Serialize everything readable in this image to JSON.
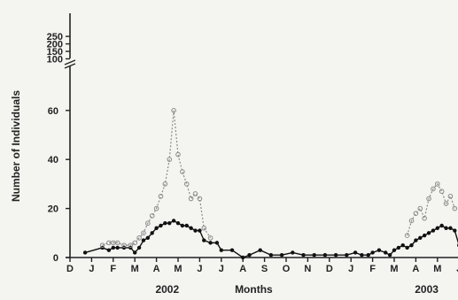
{
  "chart_data": {
    "type": "line",
    "title": "",
    "xlabel": "Months",
    "ylabel": "Number of Individuals",
    "x_ticks": [
      "D",
      "J",
      "F",
      "M",
      "A",
      "M",
      "J",
      "J",
      "A",
      "S",
      "O",
      "N",
      "D",
      "J",
      "F",
      "M",
      "A",
      "M",
      "J"
    ],
    "year_labels": [
      {
        "label": "2002",
        "month_index": 4.5
      },
      {
        "label": "2003",
        "month_index": 16.5
      }
    ],
    "y_ticks_lower": [
      0,
      20,
      40,
      60
    ],
    "y_ticks_upper": [
      100,
      150,
      200,
      250
    ],
    "ylim": [
      0,
      250
    ],
    "axis_break": "between 75 and 100",
    "colors": {
      "mean": "#111111",
      "range": "#8a8a8a",
      "axis": "#222222",
      "background": "#f4f4f1"
    },
    "series": [
      {
        "style": "solid-line-filled-circles",
        "x": [
          0.7,
          1.5,
          1.8,
          2.0,
          2.2,
          2.5,
          2.8,
          3.0,
          3.2,
          3.4,
          3.6,
          3.8,
          4.0,
          4.2,
          4.4,
          4.6,
          4.8,
          5.0,
          5.2,
          5.4,
          5.6,
          5.8,
          6.0,
          6.2,
          6.5,
          6.8,
          7.0,
          7.5,
          8.0,
          8.3,
          8.8,
          9.3,
          9.8,
          10.3,
          10.8,
          11.3,
          11.8,
          12.3,
          12.8,
          13.2,
          13.5,
          13.8,
          14.0,
          14.3,
          14.6,
          14.8,
          15.0,
          15.2,
          15.4,
          15.6,
          15.8,
          16.0,
          16.2,
          16.4,
          16.6,
          16.8,
          17.0,
          17.2,
          17.4,
          17.6,
          17.8,
          18.0
        ],
        "values": [
          2,
          4,
          3,
          4,
          4,
          4,
          4,
          2,
          4,
          7,
          8,
          10,
          12,
          13,
          14,
          14,
          15,
          14,
          13,
          13,
          12,
          11,
          11,
          7,
          6,
          6,
          3,
          3,
          0,
          1,
          3,
          1,
          1,
          2,
          1,
          1,
          1,
          1,
          1,
          2,
          1,
          1,
          2,
          3,
          2,
          1,
          3,
          4,
          5,
          4,
          5,
          7,
          8,
          9,
          10,
          11,
          12,
          13,
          12,
          12,
          11,
          5
        ]
      },
      {
        "style": "dotted-line-open-circles",
        "x": [
          1.5,
          1.8,
          2.0,
          2.2,
          2.5,
          2.8,
          3.0,
          3.2,
          3.4,
          3.6,
          3.8,
          4.0,
          4.2,
          4.4,
          4.6,
          4.8,
          5.0,
          5.2,
          5.4,
          5.6,
          5.8,
          6.0,
          6.2,
          6.5,
          15.6,
          15.8,
          16.0,
          16.2,
          16.4,
          16.6,
          16.8,
          17.0,
          17.2,
          17.4,
          17.6,
          17.8
        ],
        "values": [
          5,
          6,
          6,
          6,
          5,
          5,
          6,
          8,
          10,
          14,
          17,
          20,
          25,
          30,
          40,
          60,
          42,
          35,
          30,
          24,
          26,
          24,
          12,
          8,
          9,
          15,
          18,
          20,
          16,
          24,
          28,
          30,
          27,
          22,
          25,
          20
        ]
      }
    ]
  }
}
